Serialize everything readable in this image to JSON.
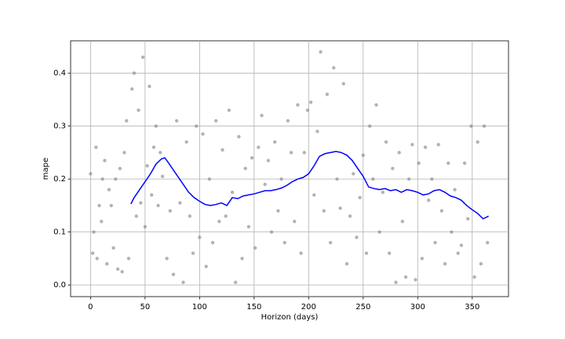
{
  "chart_data": {
    "type": "scatter",
    "x_label": "Horizon (days)",
    "y_label": "mape",
    "xlim": [
      -18.25,
      383.25
    ],
    "ylim": [
      -0.022,
      0.461
    ],
    "xticks": [
      0,
      50,
      100,
      150,
      200,
      250,
      300,
      350
    ],
    "yticks": [
      {
        "value": 0,
        "label": "0.0"
      },
      0.1,
      0.2,
      0.3,
      0.4
    ],
    "grid": true,
    "points": {
      "color": "#808080",
      "x": [
        0,
        2,
        3,
        5,
        6,
        8,
        10,
        11,
        13,
        15,
        17,
        19,
        21,
        23,
        25,
        27,
        29,
        31,
        33,
        35,
        38,
        40,
        42,
        44,
        46,
        48,
        50,
        52,
        54,
        56,
        58,
        60,
        62,
        64,
        66,
        70,
        73,
        76,
        79,
        82,
        85,
        88,
        91,
        94,
        97,
        100,
        103,
        106,
        109,
        112,
        115,
        118,
        121,
        124,
        127,
        130,
        133,
        136,
        139,
        142,
        145,
        148,
        151,
        154,
        157,
        160,
        163,
        166,
        169,
        172,
        175,
        178,
        181,
        184,
        187,
        190,
        193,
        196,
        199,
        202,
        205,
        208,
        211,
        214,
        217,
        220,
        223,
        226,
        229,
        232,
        235,
        238,
        241,
        244,
        247,
        250,
        253,
        256,
        259,
        262,
        265,
        268,
        271,
        274,
        277,
        280,
        283,
        286,
        289,
        292,
        295,
        298,
        301,
        304,
        307,
        310,
        313,
        316,
        319,
        322,
        325,
        328,
        331,
        334,
        337,
        340,
        343,
        346,
        349,
        352,
        355,
        358,
        361,
        364
      ],
      "y": [
        0.21,
        0.06,
        0.1,
        0.26,
        0.05,
        0.15,
        0.12,
        0.2,
        0.235,
        0.04,
        0.18,
        0.15,
        0.07,
        0.2,
        0.03,
        0.22,
        0.025,
        0.25,
        0.31,
        0.05,
        0.37,
        0.4,
        0.13,
        0.33,
        0.155,
        0.43,
        0.11,
        0.225,
        0.375,
        0.17,
        0.26,
        0.3,
        0.15,
        0.25,
        0.205,
        0.05,
        0.14,
        0.02,
        0.31,
        0.155,
        0.005,
        0.27,
        0.13,
        0.06,
        0.3,
        0.09,
        0.285,
        0.035,
        0.2,
        0.08,
        0.31,
        0.12,
        0.255,
        0.13,
        0.33,
        0.175,
        0.005,
        0.28,
        0.05,
        0.22,
        0.11,
        0.24,
        0.07,
        0.26,
        0.32,
        0.19,
        0.235,
        0.1,
        0.27,
        0.14,
        0.2,
        0.08,
        0.31,
        0.25,
        0.12,
        0.34,
        0.06,
        0.25,
        0.33,
        0.345,
        0.17,
        0.29,
        0.44,
        0.14,
        0.36,
        0.08,
        0.41,
        0.2,
        0.145,
        0.38,
        0.04,
        0.13,
        0.21,
        0.09,
        0.165,
        0.245,
        0.06,
        0.3,
        0.2,
        0.34,
        0.1,
        0.175,
        0.27,
        0.06,
        0.22,
        0.005,
        0.25,
        0.12,
        0.015,
        0.2,
        0.265,
        0.01,
        0.23,
        0.05,
        0.26,
        0.16,
        0.2,
        0.08,
        0.265,
        0.14,
        0.04,
        0.23,
        0.1,
        0.18,
        0.06,
        0.075,
        0.23,
        0.125,
        0.3,
        0.015,
        0.27,
        0.04,
        0.3,
        0.08
      ]
    },
    "line": {
      "color": "#0000ff",
      "x": [
        37,
        40,
        45,
        50,
        55,
        60,
        65,
        68,
        70,
        75,
        80,
        85,
        90,
        95,
        100,
        105,
        110,
        115,
        120,
        125,
        130,
        135,
        140,
        145,
        150,
        155,
        160,
        165,
        170,
        175,
        180,
        185,
        190,
        195,
        200,
        205,
        210,
        215,
        220,
        225,
        230,
        235,
        240,
        245,
        250,
        255,
        260,
        265,
        270,
        275,
        280,
        285,
        290,
        295,
        300,
        305,
        310,
        315,
        320,
        325,
        330,
        335,
        340,
        345,
        350,
        355,
        360,
        365
      ],
      "y": [
        0.153,
        0.165,
        0.18,
        0.195,
        0.21,
        0.228,
        0.238,
        0.24,
        0.235,
        0.22,
        0.205,
        0.19,
        0.175,
        0.165,
        0.158,
        0.152,
        0.15,
        0.152,
        0.155,
        0.15,
        0.165,
        0.163,
        0.168,
        0.17,
        0.172,
        0.175,
        0.178,
        0.178,
        0.18,
        0.183,
        0.188,
        0.195,
        0.2,
        0.203,
        0.21,
        0.225,
        0.243,
        0.248,
        0.25,
        0.252,
        0.25,
        0.245,
        0.235,
        0.22,
        0.205,
        0.185,
        0.182,
        0.18,
        0.182,
        0.178,
        0.18,
        0.175,
        0.18,
        0.178,
        0.175,
        0.17,
        0.172,
        0.178,
        0.18,
        0.175,
        0.168,
        0.165,
        0.16,
        0.15,
        0.142,
        0.135,
        0.125,
        0.13
      ]
    }
  }
}
